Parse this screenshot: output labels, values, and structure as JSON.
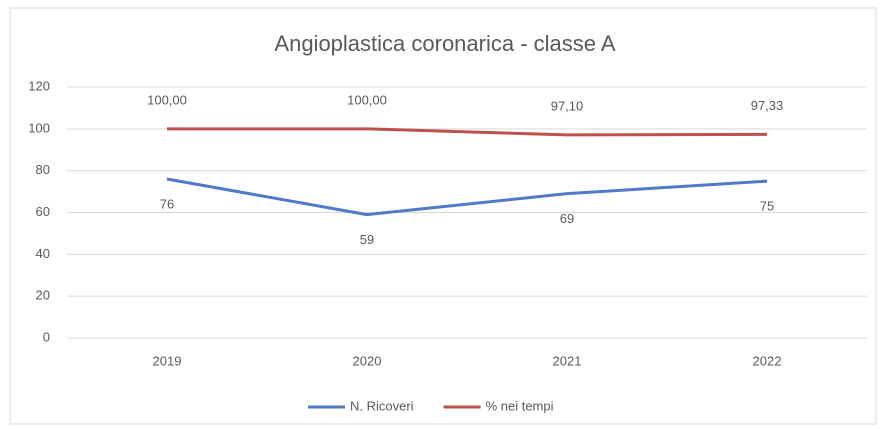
{
  "chart_data": {
    "type": "line",
    "title": "Angioplastica coronarica - classe A",
    "categories": [
      "2019",
      "2020",
      "2021",
      "2022"
    ],
    "series": [
      {
        "name": "N. Ricoveri",
        "color": "#4f7ac7",
        "values": [
          76,
          59,
          69,
          75
        ]
      },
      {
        "name": "% nei tempi",
        "color": "#c0504d",
        "values": [
          100,
          100,
          97.1,
          97.33
        ],
        "value_labels": [
          "100,00",
          "100,00",
          "97,10",
          "97,33"
        ]
      }
    ],
    "ylim": [
      0,
      120
    ],
    "yticks": [
      0,
      20,
      40,
      60,
      80,
      100,
      120
    ],
    "grid": true,
    "legend": "bottom"
  }
}
